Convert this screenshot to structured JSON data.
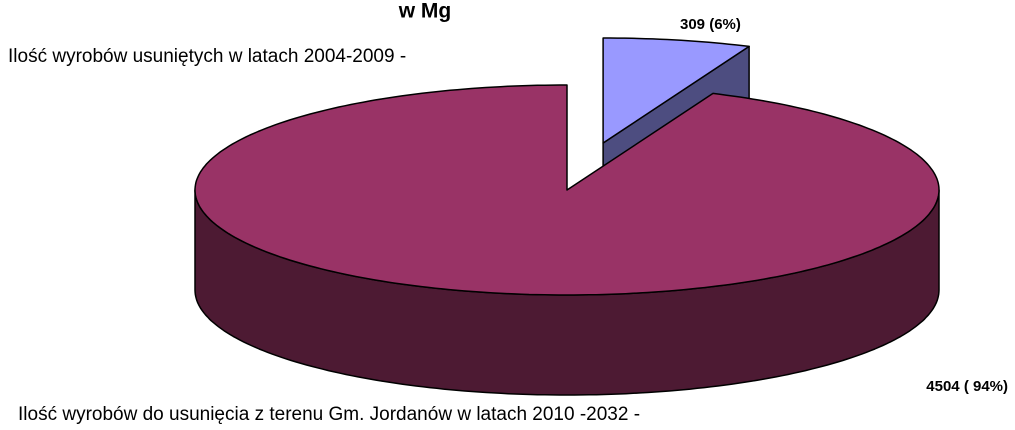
{
  "chart_data": {
    "type": "pie3d",
    "title": "w Mg",
    "categories": [
      "Ilość wyrobów usuniętych w latach 2004-2009 -",
      "Ilość wyrobów do usunięcia z terenu Gm. Jordanów w latach 2010 -2032 -"
    ],
    "values": [
      309,
      4504
    ],
    "value_labels": [
      "309   (6%)",
      "4504 ( 94%)"
    ],
    "colors": [
      "#9999ff",
      "#993366"
    ],
    "side_colors": [
      "#4d4d80",
      "#4d1a33"
    ]
  }
}
